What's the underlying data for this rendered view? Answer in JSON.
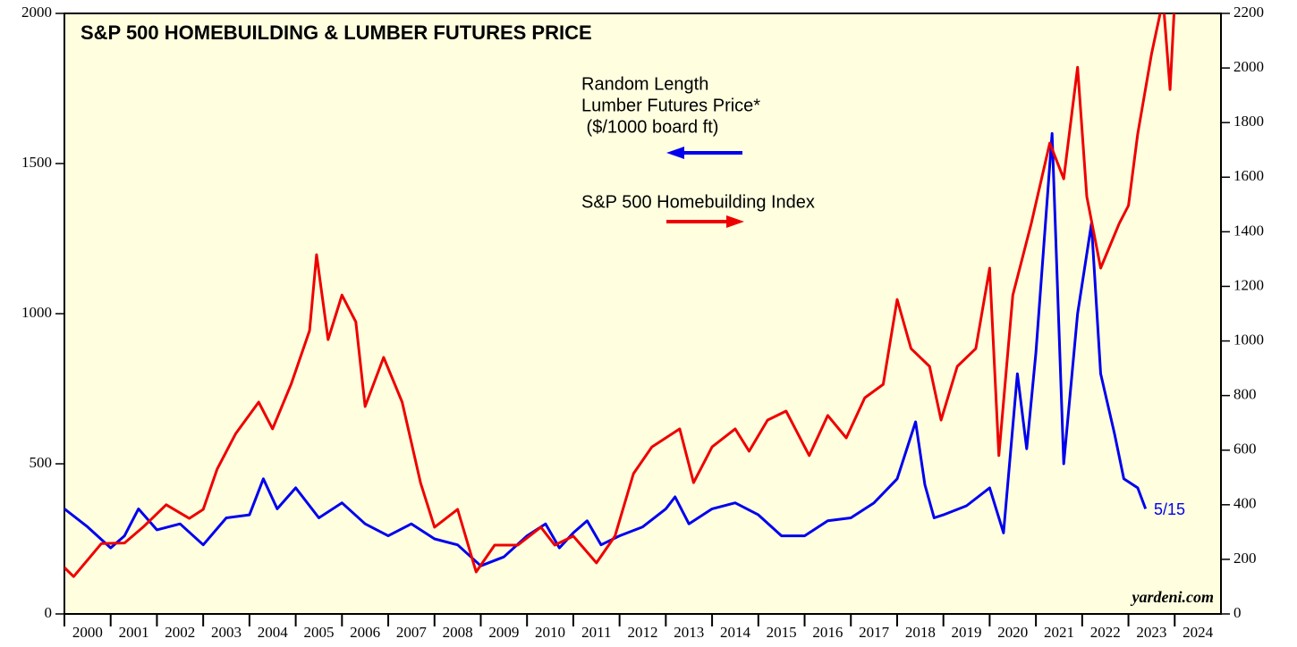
{
  "chart_data": {
    "type": "line",
    "title": "S&P 500 HOMEBUILDING & LUMBER FUTURES PRICE",
    "legend_lumber": [
      "Random Length",
      "Lumber Futures Price*",
      " ($/1000 board ft)"
    ],
    "legend_home": "S&P 500 Homebuilding Index",
    "source": "yardeni.com",
    "end_label": "5/15",
    "xlim": [
      2000,
      2025
    ],
    "xticks": [
      2000,
      2001,
      2002,
      2003,
      2004,
      2005,
      2006,
      2007,
      2008,
      2009,
      2010,
      2011,
      2012,
      2013,
      2014,
      2015,
      2016,
      2017,
      2018,
      2019,
      2020,
      2021,
      2022,
      2023,
      2024
    ],
    "ylim": [
      0,
      2000
    ],
    "yticks": [
      0,
      500,
      1000,
      1500,
      2000
    ],
    "y2lim": [
      0,
      2200
    ],
    "y2ticks": [
      0,
      200,
      400,
      600,
      800,
      1000,
      1200,
      1400,
      1600,
      1800,
      2000,
      2200
    ],
    "series": [
      {
        "name": "Random Length Lumber Futures Price",
        "color": "#0000ee",
        "axis": "y",
        "x": [
          2000.0,
          2000.5,
          2001.0,
          2001.3,
          2001.6,
          2002.0,
          2002.5,
          2003.0,
          2003.5,
          2004.0,
          2004.3,
          2004.6,
          2005.0,
          2005.5,
          2006.0,
          2006.5,
          2007.0,
          2007.5,
          2008.0,
          2008.5,
          2009.0,
          2009.5,
          2010.0,
          2010.4,
          2010.7,
          2011.0,
          2011.3,
          2011.6,
          2012.0,
          2012.5,
          2013.0,
          2013.2,
          2013.5,
          2014.0,
          2014.5,
          2015.0,
          2015.5,
          2016.0,
          2016.5,
          2017.0,
          2017.5,
          2018.0,
          2018.4,
          2018.6,
          2018.8,
          2019.0,
          2019.5,
          2020.0,
          2020.3,
          2020.6,
          2020.8,
          2021.0,
          2021.35,
          2021.6,
          2021.9,
          2022.2,
          2022.4,
          2022.7,
          2022.9,
          2023.2,
          2023.37
        ],
        "values": [
          350,
          290,
          220,
          260,
          350,
          280,
          300,
          230,
          320,
          330,
          450,
          350,
          420,
          320,
          370,
          300,
          260,
          300,
          250,
          230,
          160,
          190,
          260,
          300,
          220,
          270,
          310,
          230,
          260,
          290,
          350,
          390,
          300,
          350,
          370,
          330,
          260,
          260,
          310,
          320,
          370,
          450,
          640,
          430,
          320,
          330,
          360,
          420,
          270,
          800,
          550,
          870,
          1600,
          500,
          1000,
          1300,
          800,
          600,
          450,
          420,
          350
        ]
      },
      {
        "name": "S&P 500 Homebuilding Index",
        "color": "#ee0000",
        "axis": "y2",
        "x": [
          2000.0,
          2000.2,
          2000.8,
          2001.3,
          2001.7,
          2002.2,
          2002.7,
          2003.0,
          2003.3,
          2003.7,
          2004.2,
          2004.5,
          2004.9,
          2005.3,
          2005.45,
          2005.7,
          2006.0,
          2006.3,
          2006.5,
          2006.9,
          2007.3,
          2007.7,
          2008.0,
          2008.5,
          2008.9,
          2009.3,
          2009.8,
          2010.3,
          2010.6,
          2011.0,
          2011.5,
          2011.9,
          2012.3,
          2012.7,
          2013.3,
          2013.6,
          2014.0,
          2014.5,
          2014.8,
          2015.2,
          2015.6,
          2016.1,
          2016.5,
          2016.9,
          2017.3,
          2017.7,
          2018.0,
          2018.3,
          2018.7,
          2018.95,
          2019.3,
          2019.7,
          2020.0,
          2020.2,
          2020.5,
          2020.9,
          2021.3,
          2021.6,
          2021.9,
          2022.1,
          2022.4,
          2022.8,
          2023.0,
          2023.2,
          2023.5,
          2023.75,
          2023.9,
          2024.0
        ],
        "values": [
          170,
          137,
          258,
          260,
          318,
          400,
          350,
          383,
          530,
          660,
          776,
          678,
          841,
          1038,
          1316,
          1005,
          1168,
          1070,
          760,
          940,
          776,
          480,
          318,
          383,
          154,
          252,
          252,
          318,
          252,
          285,
          187,
          285,
          514,
          612,
          678,
          481,
          612,
          678,
          596,
          710,
          743,
          580,
          727,
          645,
          792,
          841,
          1152,
          972,
          907,
          710,
          907,
          972,
          1267,
          580,
          1168,
          1430,
          1725,
          1594,
          2003,
          1529,
          1267,
          1430,
          1496,
          1758,
          2052,
          2250,
          1921,
          2249
        ]
      }
    ]
  }
}
